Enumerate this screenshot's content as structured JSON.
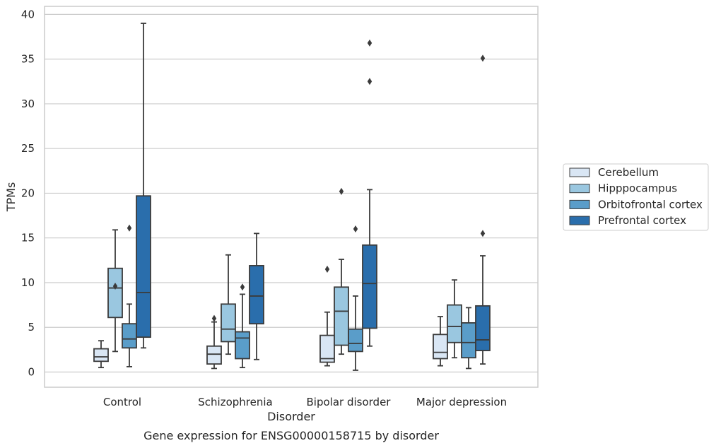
{
  "caption": "Gene expression for ENSG00000158715 by disorder",
  "chart_data": {
    "type": "box",
    "xlabel": "Disorder",
    "ylabel": "TPMs",
    "ylim": [
      -1.7,
      40.9
    ],
    "yticks": [
      0,
      5,
      10,
      15,
      20,
      25,
      30,
      35,
      40
    ],
    "grid": "horizontal",
    "legend_position": "right",
    "categories": [
      "Control",
      "Schizophrenia",
      "Bipolar disorder",
      "Major depression"
    ],
    "series": [
      {
        "name": "Cerebellum",
        "color": "#d9e6f4",
        "boxes": [
          {
            "whisker_low": 0.5,
            "q1": 1.2,
            "median": 1.7,
            "q3": 2.6,
            "whisker_high": 3.5,
            "outliers": []
          },
          {
            "whisker_low": 0.4,
            "q1": 0.9,
            "median": 2.0,
            "q3": 2.9,
            "whisker_high": 5.6,
            "outliers": [
              6.0
            ]
          },
          {
            "whisker_low": 0.7,
            "q1": 1.1,
            "median": 1.5,
            "q3": 4.1,
            "whisker_high": 6.7,
            "outliers": [
              11.5
            ]
          },
          {
            "whisker_low": 0.7,
            "q1": 1.5,
            "median": 2.2,
            "q3": 4.2,
            "whisker_high": 6.2,
            "outliers": []
          }
        ]
      },
      {
        "name": "Hipppocampus",
        "color": "#9ac7e0",
        "boxes": [
          {
            "whisker_low": 2.3,
            "q1": 6.1,
            "median": 9.4,
            "q3": 11.6,
            "whisker_high": 15.9,
            "outliers": [
              9.6
            ]
          },
          {
            "whisker_low": 2.0,
            "q1": 3.4,
            "median": 4.8,
            "q3": 7.6,
            "whisker_high": 13.1,
            "outliers": []
          },
          {
            "whisker_low": 2.0,
            "q1": 3.0,
            "median": 6.8,
            "q3": 9.5,
            "whisker_high": 12.6,
            "outliers": [
              20.2
            ]
          },
          {
            "whisker_low": 1.6,
            "q1": 3.3,
            "median": 5.1,
            "q3": 7.5,
            "whisker_high": 10.3,
            "outliers": []
          }
        ]
      },
      {
        "name": "Orbitofrontal cortex",
        "color": "#5a9dc9",
        "boxes": [
          {
            "whisker_low": 0.6,
            "q1": 2.7,
            "median": 3.7,
            "q3": 5.4,
            "whisker_high": 7.6,
            "outliers": [
              16.1
            ]
          },
          {
            "whisker_low": 0.5,
            "q1": 1.5,
            "median": 3.8,
            "q3": 4.5,
            "whisker_high": 8.7,
            "outliers": [
              9.5
            ]
          },
          {
            "whisker_low": 0.2,
            "q1": 2.3,
            "median": 3.2,
            "q3": 4.8,
            "whisker_high": 8.5,
            "outliers": [
              16.0
            ]
          },
          {
            "whisker_low": 0.4,
            "q1": 1.6,
            "median": 3.3,
            "q3": 5.5,
            "whisker_high": 7.2,
            "outliers": []
          }
        ]
      },
      {
        "name": "Prefrontal cortex",
        "color": "#2a6eac",
        "boxes": [
          {
            "whisker_low": 2.7,
            "q1": 3.9,
            "median": 8.9,
            "q3": 19.7,
            "whisker_high": 39.0,
            "outliers": []
          },
          {
            "whisker_low": 1.4,
            "q1": 5.4,
            "median": 8.5,
            "q3": 11.9,
            "whisker_high": 15.5,
            "outliers": []
          },
          {
            "whisker_low": 2.9,
            "q1": 4.9,
            "median": 9.9,
            "q3": 14.2,
            "whisker_high": 20.4,
            "outliers": [
              32.5,
              36.8
            ]
          },
          {
            "whisker_low": 0.9,
            "q1": 2.4,
            "median": 3.6,
            "q3": 7.4,
            "whisker_high": 13.0,
            "outliers": [
              15.5,
              35.1
            ]
          }
        ]
      }
    ]
  }
}
